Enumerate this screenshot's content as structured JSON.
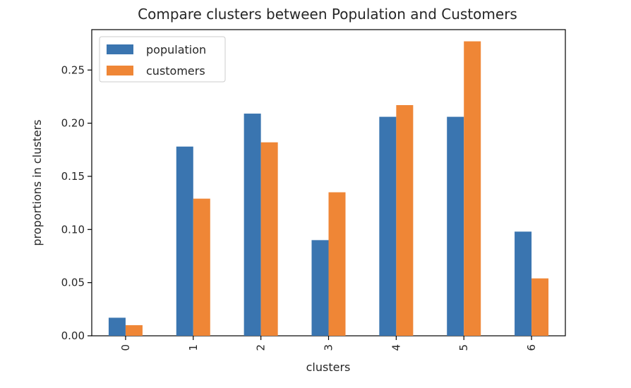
{
  "chart_data": {
    "type": "bar",
    "title": "Compare clusters between Population and Customers",
    "xlabel": "clusters",
    "ylabel": "proportions in clusters",
    "categories": [
      "0",
      "1",
      "2",
      "3",
      "4",
      "5",
      "6"
    ],
    "series": [
      {
        "name": "population",
        "color": "#3a75b0",
        "values": [
          0.017,
          0.178,
          0.209,
          0.09,
          0.206,
          0.206,
          0.098
        ]
      },
      {
        "name": "customers",
        "color": "#ef8636",
        "values": [
          0.01,
          0.129,
          0.182,
          0.135,
          0.217,
          0.277,
          0.054
        ]
      }
    ],
    "ylim": [
      0,
      0.288
    ],
    "yticks": [
      0.0,
      0.05,
      0.1,
      0.15,
      0.2,
      0.25
    ],
    "ytick_labels": [
      "0.00",
      "0.05",
      "0.10",
      "0.15",
      "0.20",
      "0.25"
    ],
    "grid": false,
    "legend_position": "top-left"
  }
}
